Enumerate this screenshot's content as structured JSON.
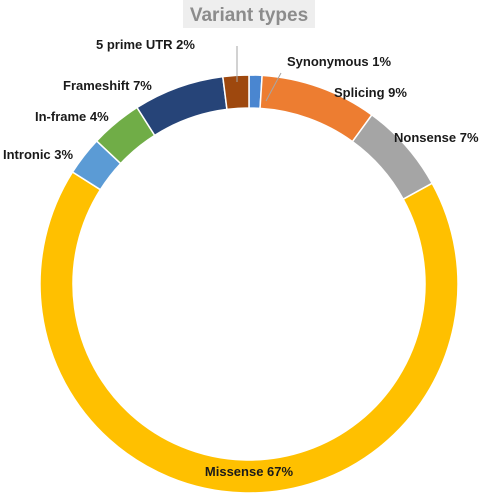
{
  "chart_data": {
    "type": "pie",
    "title": "Variant types",
    "categories": [
      "Synonymous",
      "Splicing",
      "Nonsense",
      "Missense",
      "Intronic",
      "In-frame",
      "Frameshift",
      "5 prime UTR"
    ],
    "values": [
      1,
      9,
      7,
      67,
      3,
      4,
      7,
      2
    ],
    "labels": [
      "Synonymous  1%",
      "Splicing  9%",
      "Nonsense  7%",
      "Missense  67%",
      "Intronic  3%",
      "In-frame  4%",
      "Frameshift  7%",
      "5 prime UTR  2%"
    ],
    "colors": [
      "#4a86d0",
      "#ed7d31",
      "#a5a5a5",
      "#ffc000",
      "#5b9bd5",
      "#70ad47",
      "#264478",
      "#9e480e"
    ],
    "donut": true,
    "start_angle_deg": 0,
    "direction": "clockwise"
  }
}
